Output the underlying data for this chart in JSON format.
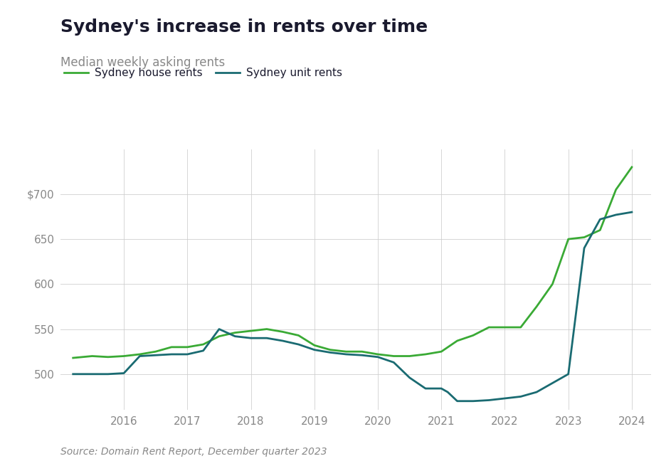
{
  "title": "Sydney's increase in rents over time",
  "subtitle": "Median weekly asking rents",
  "source": "Source: Domain Rent Report, December quarter 2023",
  "legend": [
    "Sydney house rents",
    "Sydney unit rents"
  ],
  "house_color": "#3aaa35",
  "unit_color": "#1a6b72",
  "background_color": "#ffffff",
  "ylim": [
    460,
    750
  ],
  "yticks": [
    500,
    550,
    600,
    650,
    700
  ],
  "ytick_labels": [
    "500",
    "550",
    "600",
    "650",
    "$700"
  ],
  "house_x": [
    2015.2,
    2015.5,
    2015.75,
    2016.0,
    2016.25,
    2016.5,
    2016.75,
    2017.0,
    2017.25,
    2017.5,
    2017.75,
    2018.0,
    2018.25,
    2018.5,
    2018.75,
    2019.0,
    2019.25,
    2019.5,
    2019.75,
    2020.0,
    2020.25,
    2020.5,
    2020.75,
    2021.0,
    2021.25,
    2021.5,
    2021.75,
    2022.0,
    2022.25,
    2022.5,
    2022.75,
    2023.0,
    2023.25,
    2023.5,
    2023.75,
    2024.0
  ],
  "house_y": [
    518,
    520,
    519,
    520,
    522,
    525,
    530,
    530,
    533,
    542,
    546,
    548,
    550,
    547,
    543,
    532,
    527,
    525,
    525,
    522,
    520,
    520,
    522,
    525,
    537,
    543,
    552,
    552,
    552,
    575,
    600,
    650,
    652,
    660,
    705,
    730
  ],
  "unit_x": [
    2015.2,
    2015.5,
    2015.75,
    2016.0,
    2016.25,
    2016.5,
    2016.75,
    2017.0,
    2017.25,
    2017.5,
    2017.75,
    2018.0,
    2018.25,
    2018.5,
    2018.75,
    2019.0,
    2019.25,
    2019.5,
    2019.75,
    2020.0,
    2020.25,
    2020.5,
    2020.75,
    2021.0,
    2021.1,
    2021.25,
    2021.5,
    2021.75,
    2022.0,
    2022.25,
    2022.5,
    2022.75,
    2023.0,
    2023.25,
    2023.5,
    2023.75,
    2024.0
  ],
  "unit_y": [
    500,
    500,
    500,
    501,
    520,
    521,
    522,
    522,
    526,
    550,
    542,
    540,
    540,
    537,
    533,
    527,
    524,
    522,
    521,
    519,
    513,
    496,
    484,
    484,
    480,
    470,
    470,
    471,
    473,
    475,
    480,
    490,
    500,
    640,
    672,
    677,
    680
  ],
  "xlim": [
    2015.0,
    2024.3
  ],
  "xticks": [
    2016,
    2017,
    2018,
    2019,
    2020,
    2021,
    2022,
    2023,
    2024
  ],
  "title_fontsize": 18,
  "subtitle_fontsize": 12,
  "tick_fontsize": 11,
  "legend_fontsize": 11,
  "source_fontsize": 10,
  "line_width": 2.0,
  "grid_color": "#cccccc",
  "title_color": "#1a1a2e",
  "subtitle_color": "#888888",
  "tick_color": "#888888",
  "source_color": "#888888"
}
